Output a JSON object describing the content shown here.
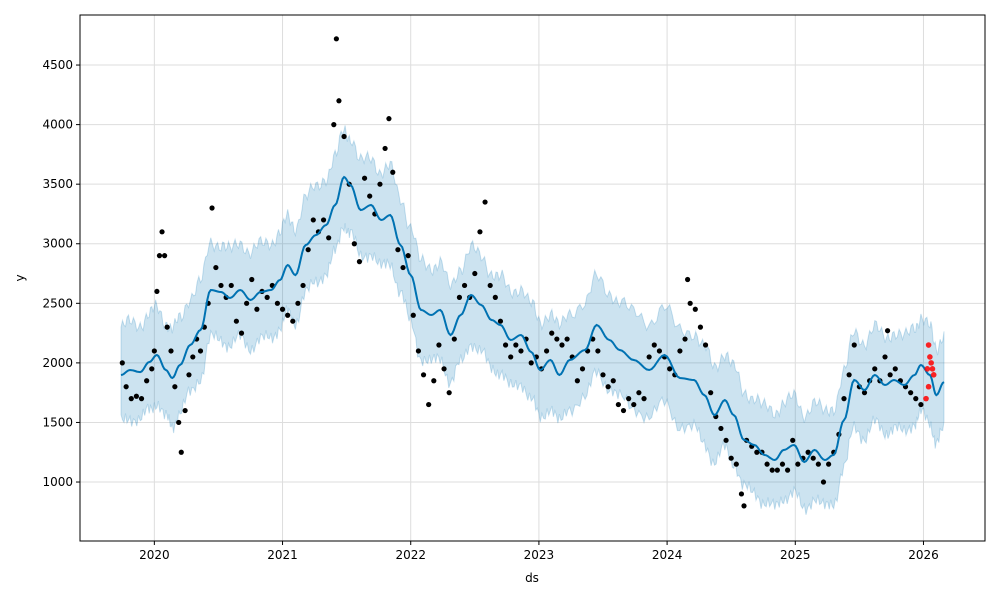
{
  "chart_data": {
    "type": "line",
    "title": "",
    "xlabel": "ds",
    "ylabel": "y",
    "xlim": [
      2019.42,
      2026.48
    ],
    "ylim": [
      505,
      4920
    ],
    "grid": true,
    "x_ticks": [
      2020,
      2021,
      2022,
      2023,
      2024,
      2025,
      2026
    ],
    "y_ticks": [
      1000,
      1500,
      2000,
      2500,
      3000,
      3500,
      4000,
      4500
    ],
    "interval_halfwidth": 400,
    "colors": {
      "forecast": "#0072B2",
      "interval": "#0072B2",
      "observed": "#000000",
      "actual_test": "#FF0000"
    },
    "forecast": [
      [
        2019.74,
        1898
      ],
      [
        2019.81,
        1940
      ],
      [
        2019.89,
        1923
      ],
      [
        2019.96,
        2007
      ],
      [
        2020.02,
        2066
      ],
      [
        2020.09,
        1940
      ],
      [
        2020.14,
        1873
      ],
      [
        2020.2,
        1982
      ],
      [
        2020.28,
        2150
      ],
      [
        2020.36,
        2276
      ],
      [
        2020.44,
        2612
      ],
      [
        2020.52,
        2595
      ],
      [
        2020.59,
        2545
      ],
      [
        2020.67,
        2612
      ],
      [
        2020.75,
        2528
      ],
      [
        2020.83,
        2595
      ],
      [
        2020.91,
        2612
      ],
      [
        2020.98,
        2696
      ],
      [
        2021.04,
        2821
      ],
      [
        2021.1,
        2737
      ],
      [
        2021.18,
        2989
      ],
      [
        2021.26,
        3073
      ],
      [
        2021.34,
        3157
      ],
      [
        2021.41,
        3325
      ],
      [
        2021.48,
        3560
      ],
      [
        2021.53,
        3493
      ],
      [
        2021.61,
        3283
      ],
      [
        2021.69,
        3325
      ],
      [
        2021.77,
        3199
      ],
      [
        2021.84,
        3241
      ],
      [
        2021.92,
        2989
      ],
      [
        2022.0,
        2737
      ],
      [
        2022.08,
        2444
      ],
      [
        2022.16,
        2402
      ],
      [
        2022.23,
        2444
      ],
      [
        2022.31,
        2234
      ],
      [
        2022.39,
        2402
      ],
      [
        2022.47,
        2570
      ],
      [
        2022.55,
        2486
      ],
      [
        2022.63,
        2360
      ],
      [
        2022.7,
        2318
      ],
      [
        2022.78,
        2192
      ],
      [
        2022.86,
        2234
      ],
      [
        2022.94,
        2091
      ],
      [
        2023.01,
        1940
      ],
      [
        2023.09,
        2024
      ],
      [
        2023.16,
        1898
      ],
      [
        2023.24,
        2024
      ],
      [
        2023.36,
        2108
      ],
      [
        2023.45,
        2318
      ],
      [
        2023.55,
        2192
      ],
      [
        2023.63,
        2108
      ],
      [
        2023.74,
        2024
      ],
      [
        2023.86,
        1940
      ],
      [
        2023.98,
        2066
      ],
      [
        2024.1,
        1873
      ],
      [
        2024.21,
        1856
      ],
      [
        2024.29,
        1730
      ],
      [
        2024.37,
        1562
      ],
      [
        2024.45,
        1688
      ],
      [
        2024.52,
        1562
      ],
      [
        2024.6,
        1353
      ],
      [
        2024.68,
        1311
      ],
      [
        2024.76,
        1227
      ],
      [
        2024.84,
        1185
      ],
      [
        2024.91,
        1269
      ],
      [
        2024.99,
        1311
      ],
      [
        2025.07,
        1168
      ],
      [
        2025.15,
        1269
      ],
      [
        2025.23,
        1185
      ],
      [
        2025.3,
        1227
      ],
      [
        2025.38,
        1520
      ],
      [
        2025.46,
        1856
      ],
      [
        2025.54,
        1772
      ],
      [
        2025.62,
        1898
      ],
      [
        2025.7,
        1814
      ],
      [
        2025.77,
        1856
      ],
      [
        2025.85,
        1814
      ],
      [
        2025.93,
        1898
      ],
      [
        2025.98,
        1982
      ],
      [
        2026.05,
        1898
      ],
      [
        2026.1,
        1730
      ],
      [
        2026.16,
        1839
      ]
    ],
    "observed": [
      [
        2019.75,
        2000
      ],
      [
        2019.78,
        1800
      ],
      [
        2019.82,
        1700
      ],
      [
        2019.86,
        1720
      ],
      [
        2019.9,
        1700
      ],
      [
        2019.94,
        1850
      ],
      [
        2019.98,
        1950
      ],
      [
        2020.0,
        2100
      ],
      [
        2020.02,
        2600
      ],
      [
        2020.04,
        2900
      ],
      [
        2020.06,
        3100
      ],
      [
        2020.08,
        2900
      ],
      [
        2020.1,
        2300
      ],
      [
        2020.13,
        2100
      ],
      [
        2020.16,
        1800
      ],
      [
        2020.19,
        1500
      ],
      [
        2020.21,
        1250
      ],
      [
        2020.24,
        1600
      ],
      [
        2020.27,
        1900
      ],
      [
        2020.3,
        2050
      ],
      [
        2020.33,
        2200
      ],
      [
        2020.36,
        2100
      ],
      [
        2020.39,
        2300
      ],
      [
        2020.42,
        2500
      ],
      [
        2020.45,
        3300
      ],
      [
        2020.48,
        2800
      ],
      [
        2020.52,
        2650
      ],
      [
        2020.56,
        2550
      ],
      [
        2020.6,
        2650
      ],
      [
        2020.64,
        2350
      ],
      [
        2020.68,
        2250
      ],
      [
        2020.72,
        2500
      ],
      [
        2020.76,
        2700
      ],
      [
        2020.8,
        2450
      ],
      [
        2020.84,
        2600
      ],
      [
        2020.88,
        2550
      ],
      [
        2020.92,
        2650
      ],
      [
        2020.96,
        2500
      ],
      [
        2021.0,
        2450
      ],
      [
        2021.04,
        2400
      ],
      [
        2021.08,
        2350
      ],
      [
        2021.12,
        2500
      ],
      [
        2021.16,
        2650
      ],
      [
        2021.2,
        2950
      ],
      [
        2021.24,
        3200
      ],
      [
        2021.28,
        3100
      ],
      [
        2021.32,
        3200
      ],
      [
        2021.36,
        3050
      ],
      [
        2021.4,
        4000
      ],
      [
        2021.42,
        4720
      ],
      [
        2021.44,
        4200
      ],
      [
        2021.48,
        3900
      ],
      [
        2021.52,
        3500
      ],
      [
        2021.56,
        3000
      ],
      [
        2021.6,
        2850
      ],
      [
        2021.64,
        3550
      ],
      [
        2021.68,
        3400
      ],
      [
        2021.72,
        3250
      ],
      [
        2021.76,
        3500
      ],
      [
        2021.8,
        3800
      ],
      [
        2021.83,
        4050
      ],
      [
        2021.86,
        3600
      ],
      [
        2021.9,
        2950
      ],
      [
        2021.94,
        2800
      ],
      [
        2021.98,
        2900
      ],
      [
        2022.02,
        2400
      ],
      [
        2022.06,
        2100
      ],
      [
        2022.1,
        1900
      ],
      [
        2022.14,
        1650
      ],
      [
        2022.18,
        1850
      ],
      [
        2022.22,
        2150
      ],
      [
        2022.26,
        1950
      ],
      [
        2022.3,
        1750
      ],
      [
        2022.34,
        2200
      ],
      [
        2022.38,
        2550
      ],
      [
        2022.42,
        2650
      ],
      [
        2022.46,
        2550
      ],
      [
        2022.5,
        2750
      ],
      [
        2022.54,
        3100
      ],
      [
        2022.58,
        3350
      ],
      [
        2022.62,
        2650
      ],
      [
        2022.66,
        2550
      ],
      [
        2022.7,
        2350
      ],
      [
        2022.74,
        2150
      ],
      [
        2022.78,
        2050
      ],
      [
        2022.82,
        2150
      ],
      [
        2022.86,
        2100
      ],
      [
        2022.9,
        2200
      ],
      [
        2022.94,
        2000
      ],
      [
        2022.98,
        2050
      ],
      [
        2023.02,
        1950
      ],
      [
        2023.06,
        2100
      ],
      [
        2023.1,
        2250
      ],
      [
        2023.14,
        2200
      ],
      [
        2023.18,
        2150
      ],
      [
        2023.22,
        2200
      ],
      [
        2023.26,
        2050
      ],
      [
        2023.3,
        1850
      ],
      [
        2023.34,
        1950
      ],
      [
        2023.38,
        2100
      ],
      [
        2023.42,
        2200
      ],
      [
        2023.46,
        2100
      ],
      [
        2023.5,
        1900
      ],
      [
        2023.54,
        1800
      ],
      [
        2023.58,
        1850
      ],
      [
        2023.62,
        1650
      ],
      [
        2023.66,
        1600
      ],
      [
        2023.7,
        1700
      ],
      [
        2023.74,
        1650
      ],
      [
        2023.78,
        1750
      ],
      [
        2023.82,
        1700
      ],
      [
        2023.86,
        2050
      ],
      [
        2023.9,
        2150
      ],
      [
        2023.94,
        2100
      ],
      [
        2023.98,
        2050
      ],
      [
        2024.02,
        1950
      ],
      [
        2024.06,
        1900
      ],
      [
        2024.1,
        2100
      ],
      [
        2024.14,
        2200
      ],
      [
        2024.16,
        2700
      ],
      [
        2024.18,
        2500
      ],
      [
        2024.22,
        2450
      ],
      [
        2024.26,
        2300
      ],
      [
        2024.3,
        2150
      ],
      [
        2024.34,
        1750
      ],
      [
        2024.38,
        1550
      ],
      [
        2024.42,
        1450
      ],
      [
        2024.46,
        1350
      ],
      [
        2024.5,
        1200
      ],
      [
        2024.54,
        1150
      ],
      [
        2024.58,
        900
      ],
      [
        2024.6,
        800
      ],
      [
        2024.62,
        1350
      ],
      [
        2024.66,
        1300
      ],
      [
        2024.7,
        1250
      ],
      [
        2024.74,
        1250
      ],
      [
        2024.78,
        1150
      ],
      [
        2024.82,
        1100
      ],
      [
        2024.86,
        1100
      ],
      [
        2024.9,
        1150
      ],
      [
        2024.94,
        1100
      ],
      [
        2024.98,
        1350
      ],
      [
        2025.02,
        1150
      ],
      [
        2025.06,
        1200
      ],
      [
        2025.1,
        1250
      ],
      [
        2025.14,
        1200
      ],
      [
        2025.18,
        1150
      ],
      [
        2025.22,
        1000
      ],
      [
        2025.26,
        1150
      ],
      [
        2025.3,
        1250
      ],
      [
        2025.34,
        1400
      ],
      [
        2025.38,
        1700
      ],
      [
        2025.42,
        1900
      ],
      [
        2025.46,
        2150
      ],
      [
        2025.5,
        1800
      ],
      [
        2025.54,
        1750
      ],
      [
        2025.58,
        1850
      ],
      [
        2025.62,
        1950
      ],
      [
        2025.66,
        1850
      ],
      [
        2025.7,
        2050
      ],
      [
        2025.72,
        2270
      ],
      [
        2025.74,
        1900
      ],
      [
        2025.78,
        1950
      ],
      [
        2025.82,
        1850
      ],
      [
        2025.86,
        1800
      ],
      [
        2025.9,
        1750
      ],
      [
        2025.94,
        1700
      ],
      [
        2025.98,
        1650
      ]
    ],
    "actual_test": [
      [
        2026.02,
        1700
      ],
      [
        2026.03,
        1950
      ],
      [
        2026.04,
        2150
      ],
      [
        2026.05,
        2050
      ],
      [
        2026.06,
        2000
      ],
      [
        2026.07,
        1950
      ],
      [
        2026.08,
        1900
      ],
      [
        2026.04,
        1800
      ]
    ]
  }
}
